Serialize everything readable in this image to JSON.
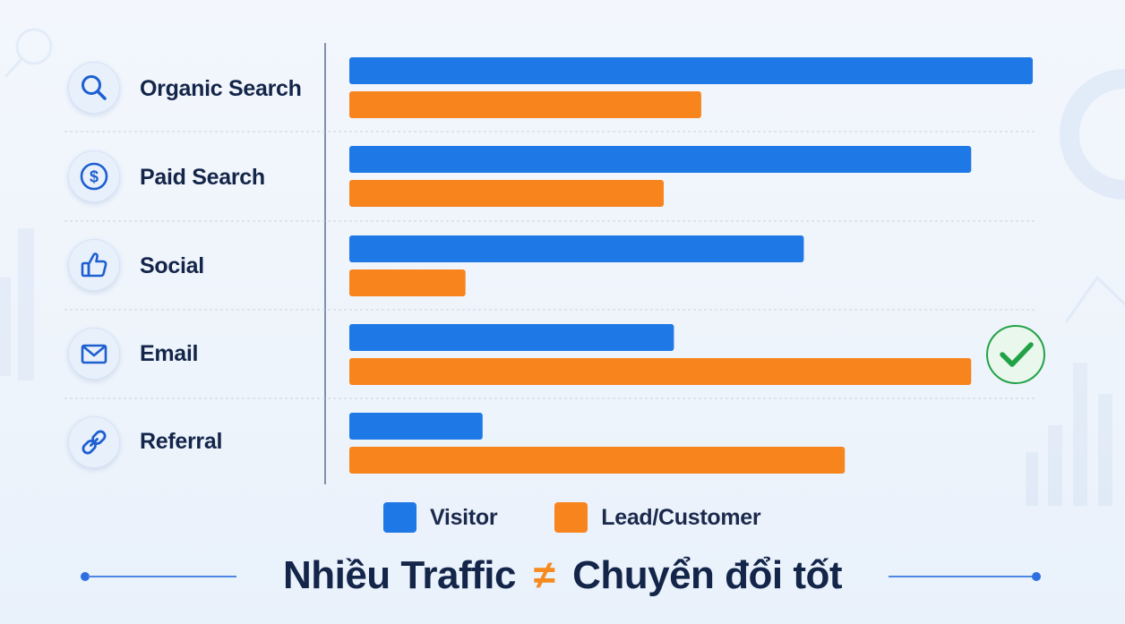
{
  "chart_data": {
    "type": "bar",
    "orientation": "horizontal",
    "categories": [
      "Organic Search",
      "Paid Search",
      "Social",
      "Email",
      "Referral"
    ],
    "series": [
      {
        "name": "Visitor",
        "color": "#1e78e6",
        "values": [
          100,
          91,
          66.5,
          47.5,
          19.5
        ]
      },
      {
        "name": "Lead/Customer",
        "color": "#f7841d",
        "values": [
          51.5,
          46,
          17,
          91,
          72.5
        ]
      }
    ],
    "xlim": [
      0,
      100
    ],
    "grid": false,
    "legend_position": "bottom",
    "highlight": {
      "category": "Email",
      "icon": "check-circle-icon"
    }
  },
  "rows": [
    {
      "label": "Organic Search",
      "icon": "search-icon"
    },
    {
      "label": "Paid Search",
      "icon": "dollar-circle-icon"
    },
    {
      "label": "Social",
      "icon": "thumbs-up-icon"
    },
    {
      "label": "Email",
      "icon": "envelope-icon"
    },
    {
      "label": "Referral",
      "icon": "link-icon"
    }
  ],
  "legend": {
    "visitor": "Visitor",
    "lead": "Lead/Customer"
  },
  "footer": {
    "title_left": "Nhiều Traffic",
    "operator": "≠",
    "title_right": "Chuyển đổi tốt"
  },
  "colors": {
    "visitor": "#1e78e6",
    "lead": "#f7841d",
    "text": "#14254a",
    "check": "#22a247"
  }
}
